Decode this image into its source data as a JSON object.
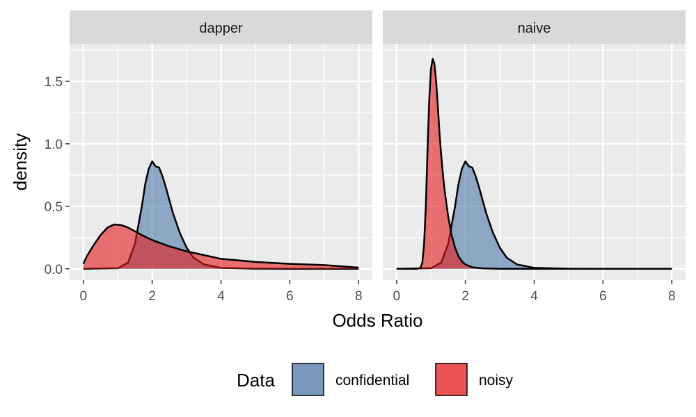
{
  "chart_data": {
    "type": "area",
    "subtype": "faceted density plot",
    "xlabel": "Odds Ratio",
    "ylabel": "density",
    "xlim": [
      -0.4,
      8.4
    ],
    "ylim": [
      -0.09,
      1.8
    ],
    "xticks": [
      0,
      2,
      4,
      6,
      8
    ],
    "xtick_labels": [
      "0",
      "2",
      "4",
      "6",
      "8"
    ],
    "yticks": [
      0.0,
      0.5,
      1.0,
      1.5
    ],
    "ytick_labels": [
      "0.0",
      "0.5",
      "1.0",
      "1.5"
    ],
    "grid": true,
    "legend": {
      "title": "Data",
      "position": "bottom",
      "entries": [
        {
          "label": "confidential",
          "color": "#4c78a8"
        },
        {
          "label": "noisy",
          "color": "#e41a1c"
        }
      ]
    },
    "colors": {
      "confidential": "#4c78a8",
      "noisy": "#e41a1c",
      "outline": "#000000",
      "panel_background": "#ebebeb",
      "strip_background": "#d9d9d9",
      "gridline": "#ffffff"
    },
    "panels": [
      {
        "title": "dapper",
        "series": [
          {
            "name": "confidential",
            "x": [
              0,
              1.0,
              1.3,
              1.5,
              1.7,
              1.8,
              1.9,
              2.0,
              2.1,
              2.2,
              2.3,
              2.4,
              2.5,
              2.6,
              2.8,
              3.0,
              3.2,
              3.5,
              4.0,
              5.0,
              6.0,
              8.0
            ],
            "y": [
              0,
              0.005,
              0.05,
              0.2,
              0.5,
              0.68,
              0.8,
              0.86,
              0.82,
              0.81,
              0.74,
              0.65,
              0.55,
              0.45,
              0.29,
              0.17,
              0.09,
              0.035,
              0.008,
              0.001,
              0,
              0
            ]
          },
          {
            "name": "noisy",
            "x": [
              0,
              0.1,
              0.3,
              0.5,
              0.7,
              0.9,
              1.1,
              1.3,
              1.5,
              1.7,
              2.0,
              2.5,
              3.0,
              3.5,
              4.0,
              5.0,
              6.0,
              7.0,
              7.5,
              8.0
            ],
            "y": [
              0.04,
              0.1,
              0.19,
              0.27,
              0.33,
              0.355,
              0.35,
              0.33,
              0.3,
              0.27,
              0.23,
              0.18,
              0.14,
              0.11,
              0.08,
              0.055,
              0.04,
              0.03,
              0.02,
              0.01
            ]
          }
        ]
      },
      {
        "title": "naive",
        "series": [
          {
            "name": "confidential",
            "x": [
              0,
              1.0,
              1.3,
              1.5,
              1.7,
              1.8,
              1.9,
              2.0,
              2.1,
              2.2,
              2.3,
              2.4,
              2.5,
              2.6,
              2.8,
              3.0,
              3.2,
              3.5,
              4.0,
              5.0,
              6.0,
              8.0
            ],
            "y": [
              0,
              0.005,
              0.05,
              0.2,
              0.5,
              0.68,
              0.8,
              0.86,
              0.82,
              0.81,
              0.74,
              0.65,
              0.55,
              0.45,
              0.29,
              0.17,
              0.09,
              0.035,
              0.008,
              0.001,
              0,
              0
            ]
          },
          {
            "name": "noisy",
            "x": [
              0,
              0.6,
              0.7,
              0.75,
              0.8,
              0.85,
              0.9,
              0.95,
              1.0,
              1.05,
              1.1,
              1.15,
              1.2,
              1.25,
              1.3,
              1.35,
              1.4,
              1.5,
              1.6,
              1.7,
              1.8,
              1.9,
              2.0,
              2.2,
              2.5,
              3.0,
              4.0,
              8.0
            ],
            "y": [
              0,
              0,
              0.01,
              0.05,
              0.2,
              0.5,
              0.95,
              1.35,
              1.6,
              1.68,
              1.64,
              1.5,
              1.3,
              1.08,
              0.9,
              0.75,
              0.62,
              0.42,
              0.27,
              0.17,
              0.1,
              0.06,
              0.035,
              0.012,
              0.004,
              0,
              0,
              0
            ]
          }
        ]
      }
    ]
  }
}
